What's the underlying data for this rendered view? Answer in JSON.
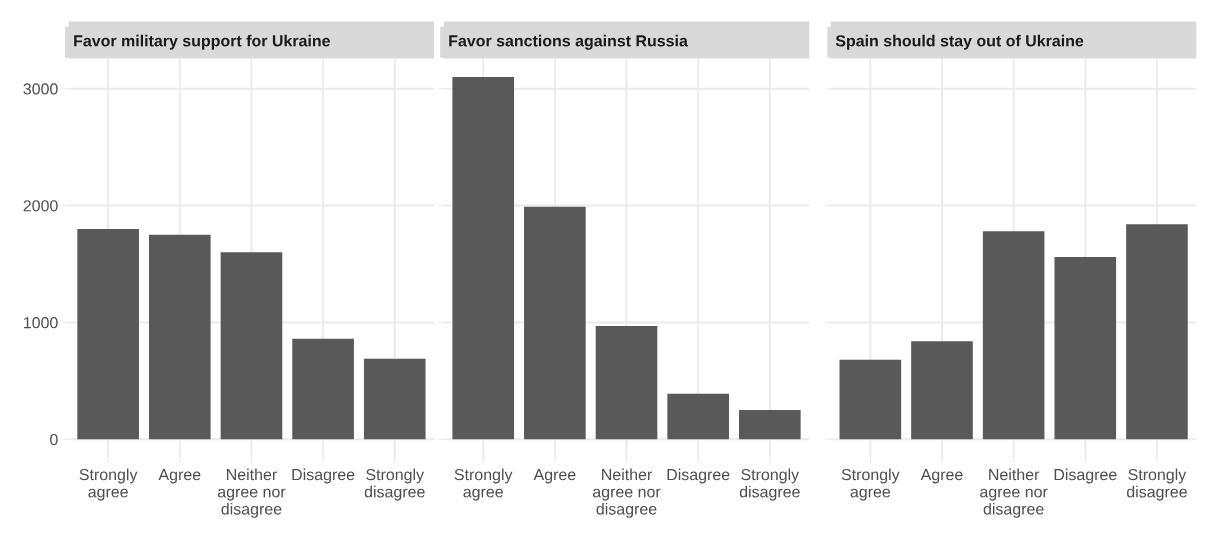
{
  "chart_data": [
    {
      "type": "bar",
      "title": "Favor military support for Ukraine",
      "categories": [
        "Strongly\nagree",
        "Agree",
        "Neither\nagree nor\ndisagree",
        "Disagree",
        "Strongly\ndisagree"
      ],
      "values": [
        1800,
        1750,
        1600,
        860,
        690
      ],
      "color": "#595959",
      "ylim": [
        -155,
        3255
      ],
      "yticks": [
        0,
        1000,
        2000,
        3000
      ],
      "grid": true
    },
    {
      "type": "bar",
      "title": "Favor sanctions against Russia",
      "categories": [
        "Strongly\nagree",
        "Agree",
        "Neither\nagree nor\ndisagree",
        "Disagree",
        "Strongly\ndisagree"
      ],
      "values": [
        3100,
        1990,
        970,
        390,
        250
      ],
      "color": "#595959",
      "ylim": [
        -155,
        3255
      ],
      "yticks": [
        0,
        1000,
        2000,
        3000
      ],
      "grid": true,
      "tick_labels": "x"
    },
    {
      "type": "bar",
      "title": "Spain should stay out of Ukraine",
      "categories": [
        "Strongly\nagree",
        "Agree",
        "Neither\nagree nor\ndisagree",
        "Disagree",
        "Strongly\ndisagree"
      ],
      "values": [
        680,
        840,
        1780,
        1560,
        1840
      ],
      "color": "#595959",
      "ylim": [
        -155,
        3255
      ],
      "yticks": [
        0,
        1000,
        2000,
        3000
      ],
      "grid": true,
      "tick_labels": "x"
    }
  ]
}
